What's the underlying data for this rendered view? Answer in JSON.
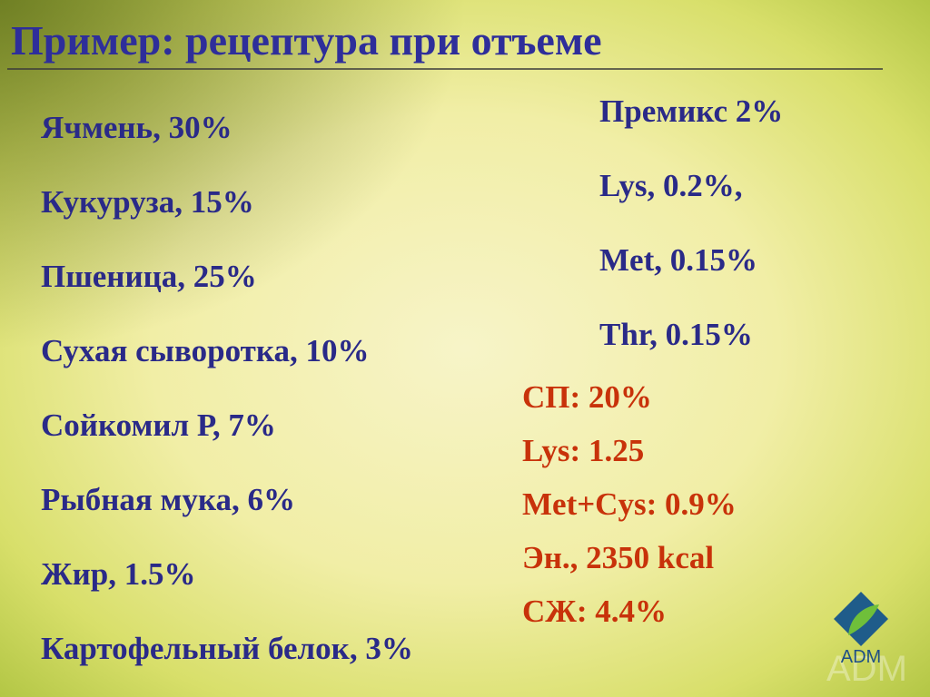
{
  "slide": {
    "title": "Пример: рецептура при отъеме",
    "ingredients": [
      "Ячмень, 30%",
      "Кукуруза, 15%",
      "Пшеница, 25%",
      "Сухая сыворотка, 10%",
      "Сойкомил Р,  7%",
      "Рыбная мука, 6%",
      "Жир, 1.5%",
      "Картофельный белок, 3%"
    ],
    "additives": [
      "Премикс 2%",
      "Lys, 0.2%,",
      "Met, 0.15%",
      "Thr, 0.15%"
    ],
    "nutrients": [
      "СП: 20%",
      "Lys: 1.25",
      "Met+Cys: 0.9%",
      "Эн., 2350 kcal",
      "СЖ: 4.4%"
    ],
    "logo": "ADM"
  }
}
